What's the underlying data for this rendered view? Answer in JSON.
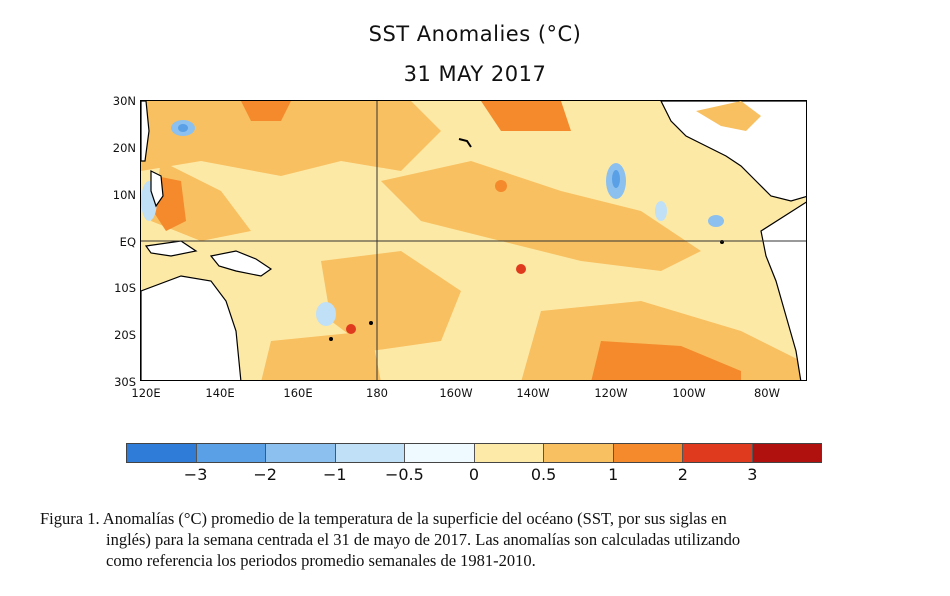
{
  "title": "SST Anomalies (°C)",
  "date": "31 MAY 2017",
  "map": {
    "lat_labels": [
      "30N",
      "20N",
      "10N",
      "EQ",
      "10S",
      "20S",
      "30S"
    ],
    "lon_labels": [
      "120E",
      "140E",
      "160E",
      "180",
      "160W",
      "140W",
      "120W",
      "100W",
      "80W"
    ],
    "land_color": "#ffffff",
    "ocean_base_color": "#fde9a6"
  },
  "colorbar": {
    "colors": [
      "#2f7bd8",
      "#5aa0e6",
      "#8cc0ee",
      "#bfe0f7",
      "#eefaff",
      "#fdeaa8",
      "#f8c060",
      "#f48a2c",
      "#e03a1e",
      "#b0100e"
    ],
    "labels": [
      "−3",
      "−2",
      "−1",
      "−0.5",
      "0",
      "0.5",
      "1",
      "2",
      "3"
    ]
  },
  "caption": {
    "line1": "Figura 1. Anomalías (°C) promedio de la temperatura de la superficie del océano (SST, por sus siglas en",
    "line2": "inglés) para la semana centrada el 31 de mayo de 2017. Las anomalías son calculadas utilizando",
    "line3": "como referencia los periodos promedio semanales de 1981-2010."
  }
}
